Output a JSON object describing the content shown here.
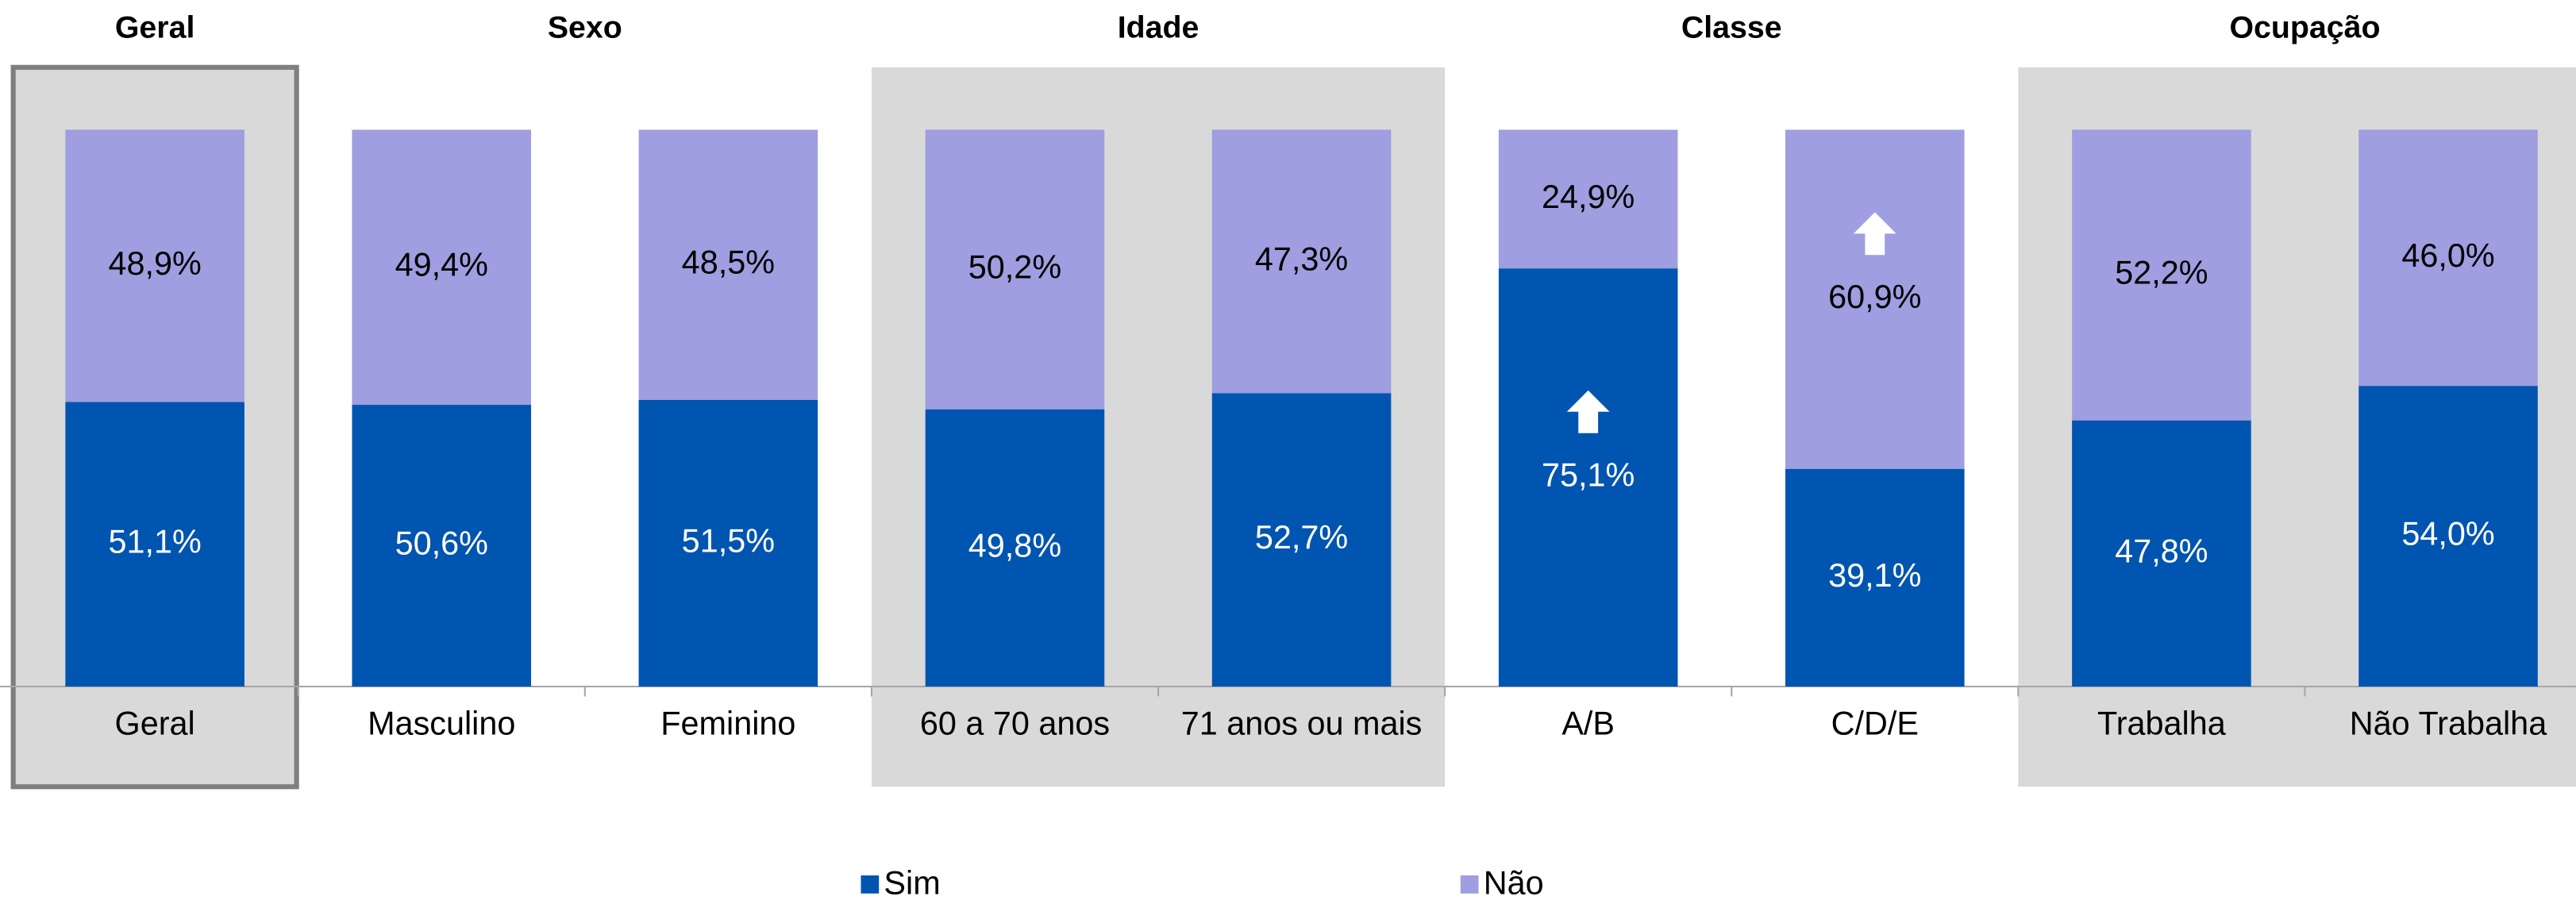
{
  "chart_data": {
    "type": "stacked_bar",
    "groups": [
      {
        "name": "Geral",
        "categories": [
          "Geral"
        ]
      },
      {
        "name": "Sexo",
        "categories": [
          "Masculino",
          "Feminino"
        ]
      },
      {
        "name": "Idade",
        "categories": [
          "60 a 70 anos",
          "71 anos ou mais"
        ]
      },
      {
        "name": "Classe",
        "categories": [
          "A/B",
          "C/D/E"
        ]
      },
      {
        "name": "Ocupação",
        "categories": [
          "Trabalha",
          "Não Trabalha"
        ]
      }
    ],
    "series": [
      {
        "name": "Sim",
        "color": "#0055b0",
        "values": [
          51.1,
          50.6,
          51.5,
          49.8,
          52.7,
          75.1,
          39.1,
          47.8,
          54.0
        ],
        "value_labels": [
          "51,1%",
          "50,6%",
          "51,5%",
          "49,8%",
          "52,7%",
          "75,1%",
          "39,1%",
          "47,8%",
          "54,0%"
        ]
      },
      {
        "name": "Não",
        "color": "#9e9ee0",
        "values": [
          48.9,
          49.4,
          48.5,
          50.2,
          47.3,
          24.9,
          60.9,
          52.2,
          46.0
        ],
        "value_labels": [
          "48,9%",
          "49,4%",
          "48,5%",
          "50,2%",
          "47,3%",
          "24,9%",
          "60,9%",
          "52,2%",
          "46,0%"
        ]
      }
    ],
    "ylim": [
      0,
      100
    ]
  }
}
